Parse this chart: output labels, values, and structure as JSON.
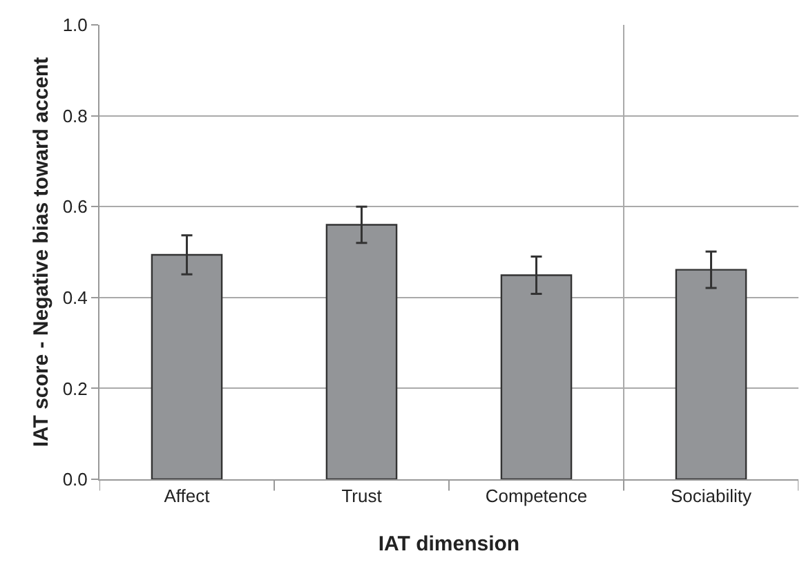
{
  "chart_data": {
    "type": "bar",
    "xlabel": "IAT dimension",
    "ylabel": "IAT score - Negative bias toward accent",
    "categories": [
      "Affect",
      "Trust",
      "Competence",
      "Sociability"
    ],
    "values": [
      0.494,
      0.56,
      0.449,
      0.461
    ],
    "color": "#939598",
    "errors": [
      0.043,
      0.04,
      0.041,
      0.04
    ],
    "ylim": [
      0,
      1
    ],
    "yticks": [
      {
        "value": 0,
        "label": "0.0"
      },
      {
        "value": 0.2,
        "label": "0.2"
      },
      {
        "value": 0.4,
        "label": "0.4"
      },
      {
        "value": 0.6,
        "label": "0.6"
      },
      {
        "value": 0.8,
        "label": "0.8"
      },
      {
        "value": 1,
        "label": "1.0"
      }
    ],
    "grid": "y"
  }
}
